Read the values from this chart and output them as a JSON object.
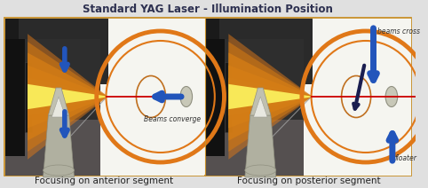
{
  "title": "Standard YAG Laser - Illumination Position",
  "title_fontsize": 8.5,
  "title_fontweight": "bold",
  "title_color": "#2d3050",
  "caption_left": "Focusing on anterior segment",
  "caption_right": "Focusing on posterior segment",
  "caption_fontsize": 7.5,
  "caption_color": "#222222",
  "bg_outer": "#e0e0e0",
  "bg_white": "#f5f5f0",
  "border_color": "#c8902a",
  "label_beams_converge": "Beams converge",
  "label_beams_cross": "beams cross",
  "label_floater": "floater",
  "label_color": "#333333",
  "orange_color": "#e07818",
  "blue_color": "#2255bb",
  "red_color": "#cc0000",
  "dark_machine": "#2a2a2a",
  "dark_bg": "#3a3a3a",
  "floor_dark": "#4a4a4a",
  "floor_light": "#686868",
  "machine_wall": "#1a1a1a",
  "beam_center": "#e8c828",
  "beam_mid": "#d09018",
  "beam_outer": "#e07818",
  "iris_color": "#c07020",
  "lens_gray": "#c8c8b8",
  "lens_edge": "#909080",
  "navy_arrow": "#1a1e50",
  "silver_light": "#c0c0b0",
  "silver_dark": "#909080",
  "silver_mid": "#b0b0a0"
}
